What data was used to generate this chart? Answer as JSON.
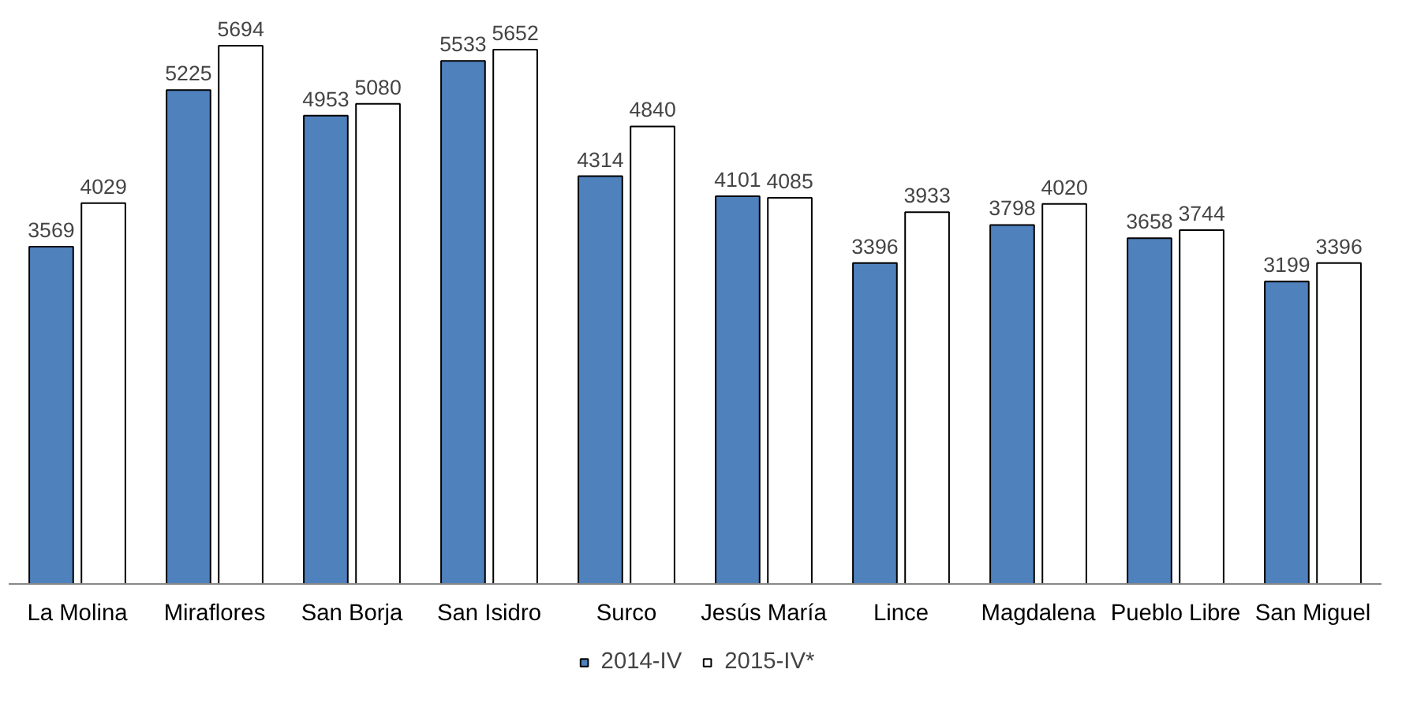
{
  "chart_data": {
    "type": "bar",
    "categories": [
      "La Molina",
      "Miraflores",
      "San Borja",
      "San Isidro",
      "Surco",
      "Jesús María",
      "Lince",
      "Magdalena",
      "Pueblo Libre",
      "San Miguel"
    ],
    "series": [
      {
        "name": "2014-IV",
        "color": "#4f81bd",
        "values": [
          3569,
          5225,
          4953,
          5533,
          4314,
          4101,
          3396,
          3798,
          3658,
          3199
        ]
      },
      {
        "name": "2015-IV*",
        "color": "#ffffff",
        "values": [
          4029,
          5694,
          5080,
          5652,
          4840,
          4085,
          3933,
          4020,
          3744,
          3396
        ]
      }
    ],
    "tick_labels": "x",
    "data_labels": true,
    "legend": "bottom",
    "grid": false
  }
}
